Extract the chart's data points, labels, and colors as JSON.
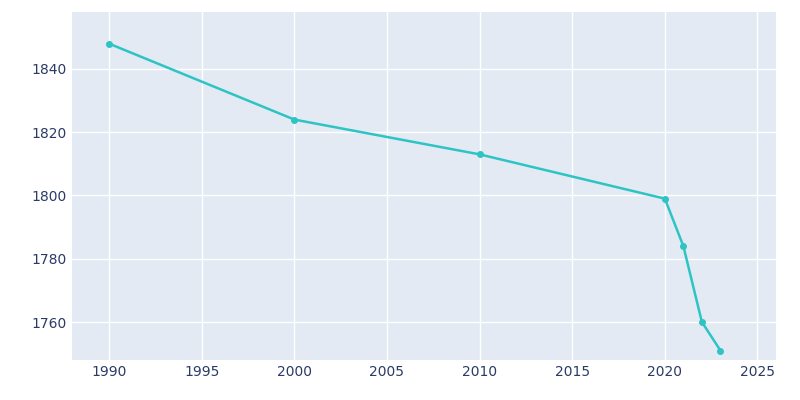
{
  "years": [
    1990,
    2000,
    2010,
    2020,
    2021,
    2022,
    2023
  ],
  "population": [
    1848,
    1824,
    1813,
    1799,
    1784,
    1760,
    1751
  ],
  "line_color": "#2EC4C4",
  "marker_color": "#2EC4C4",
  "axes_background_color": "#E3EAF3",
  "figure_background_color": "#ffffff",
  "grid_color": "#ffffff",
  "text_color": "#2B3A67",
  "xlim": [
    1988,
    2026
  ],
  "ylim": [
    1748,
    1858
  ],
  "xticks": [
    1990,
    1995,
    2000,
    2005,
    2010,
    2015,
    2020,
    2025
  ],
  "yticks": [
    1760,
    1780,
    1800,
    1820,
    1840
  ],
  "line_width": 1.8,
  "marker_size": 4
}
